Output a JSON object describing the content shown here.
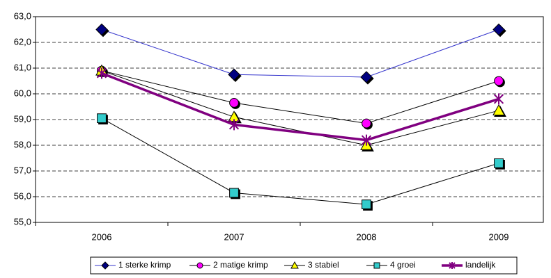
{
  "chart_data": {
    "type": "line",
    "categories": [
      "2006",
      "2007",
      "2008",
      "2009"
    ],
    "ylim": [
      55,
      63
    ],
    "yticks": [
      {
        "value": 55,
        "label": "55,0"
      },
      {
        "value": 56,
        "label": "56,0"
      },
      {
        "value": 57,
        "label": "57,0"
      },
      {
        "value": 58,
        "label": "58,0"
      },
      {
        "value": 59,
        "label": "59,0"
      },
      {
        "value": 60,
        "label": "60,0"
      },
      {
        "value": 61,
        "label": "61,0"
      },
      {
        "value": 62,
        "label": "62,0"
      },
      {
        "value": 63,
        "label": "63,0"
      }
    ],
    "grid": true,
    "legend": "bottom",
    "series": [
      {
        "name": "1  sterke krimp",
        "color": "#000080",
        "line_color": "#3333cc",
        "marker": "diamond",
        "values": [
          62.5,
          60.75,
          60.65,
          62.5
        ]
      },
      {
        "name": "2  matige krimp",
        "color": "#ff00ff",
        "line_color": "#000000",
        "marker": "circle",
        "values": [
          60.9,
          59.65,
          58.85,
          60.5
        ]
      },
      {
        "name": "3  stabiel",
        "color": "#ffff00",
        "line_color": "#000000",
        "marker": "triangle",
        "values": [
          60.9,
          59.1,
          58.0,
          59.35
        ]
      },
      {
        "name": "4  groei",
        "color": "#33cccc",
        "line_color": "#000000",
        "marker": "square",
        "values": [
          59.05,
          56.15,
          55.7,
          57.3
        ]
      },
      {
        "name": "landelijk",
        "color": "#800080",
        "line_color": "#800080",
        "marker": "star",
        "values": [
          60.8,
          58.8,
          58.2,
          59.8
        ]
      }
    ]
  }
}
